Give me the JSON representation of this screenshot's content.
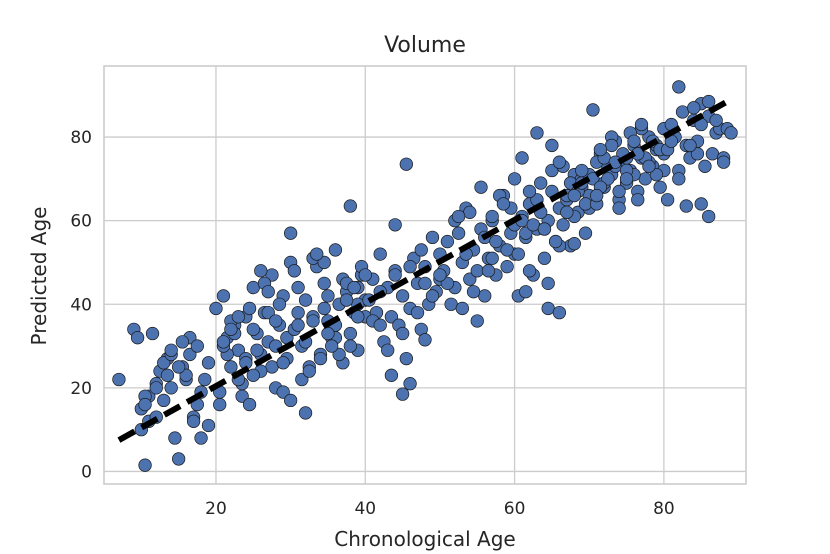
{
  "chart_data": {
    "type": "scatter",
    "title": "Volume",
    "xlabel": "Chronological Age",
    "ylabel": "Predicted Age",
    "xlim": [
      5,
      91
    ],
    "ylim": [
      -3,
      97
    ],
    "xticks": [
      20,
      40,
      60,
      80
    ],
    "yticks": [
      0,
      20,
      40,
      60,
      80
    ],
    "grid": true,
    "point_color": "#4c72b0",
    "fit_line": {
      "x": [
        7,
        89
      ],
      "y": [
        7.5,
        89
      ],
      "style": "dashed",
      "color": "#000000"
    },
    "x": [
      7,
      9,
      9.5,
      10,
      10.5,
      11,
      11,
      12,
      12.5,
      13,
      13.5,
      14,
      14.5,
      15,
      15.5,
      16,
      16.5,
      17,
      17.5,
      18,
      10,
      11.5,
      13,
      14,
      15.5,
      16,
      17,
      18,
      19,
      10.5,
      12,
      13.5,
      15,
      16.5,
      14,
      12,
      10.5,
      17.5,
      19,
      18.5,
      20,
      20.5,
      21,
      21.5,
      22,
      22.5,
      23,
      23.5,
      24,
      24.5,
      25,
      25.5,
      26,
      26.5,
      27,
      27.5,
      28,
      28.5,
      29,
      29.5,
      20.5,
      21.5,
      22.5,
      23.5,
      24.5,
      25.5,
      26.5,
      27.5,
      28.5,
      29.5,
      21,
      22,
      23,
      24,
      25,
      26,
      27,
      28,
      29,
      30,
      21,
      23,
      25,
      27,
      29,
      22,
      24,
      26,
      28,
      30,
      30.5,
      31,
      31.5,
      32,
      32.5,
      33,
      33.5,
      34,
      34.5,
      35,
      35.5,
      36,
      36.5,
      37,
      37.5,
      38,
      38.5,
      39,
      39.5,
      40,
      31,
      32,
      33,
      34,
      35,
      36,
      37,
      38,
      39,
      40,
      30,
      31.5,
      33,
      34.5,
      36,
      37.5,
      39,
      32,
      35,
      38,
      30.5,
      32.5,
      34.5,
      36.5,
      38.5,
      31,
      33.5,
      35.5,
      37.5,
      39.5,
      40.5,
      41,
      41.5,
      42,
      42.5,
      43,
      43.5,
      44,
      44.5,
      45,
      45.5,
      46,
      46.5,
      47,
      47.5,
      48,
      48.5,
      49,
      49.5,
      50,
      41,
      42,
      43,
      44,
      45,
      46,
      47,
      48,
      49,
      50,
      45.5,
      45,
      46,
      44,
      42,
      39,
      43.5,
      47.5,
      40,
      48,
      50.5,
      51,
      51.5,
      52,
      52.5,
      53,
      53.5,
      54,
      54.5,
      55,
      55.5,
      56,
      56.5,
      57,
      57.5,
      58,
      58.5,
      59,
      59.5,
      60,
      51,
      52,
      53,
      54,
      55,
      56,
      57,
      58,
      59,
      60,
      53.5,
      55.5,
      57.5,
      59.5,
      52.5,
      56.5,
      58.5,
      50,
      54.5,
      57,
      60.5,
      61,
      61.5,
      62,
      62.5,
      63,
      63.5,
      64,
      64.5,
      65,
      65.5,
      66,
      66.5,
      67,
      67.5,
      68,
      68.5,
      69,
      69.5,
      70,
      61,
      62,
      63,
      64,
      65,
      66,
      67,
      68,
      69,
      70,
      61.5,
      63.5,
      65.5,
      67.5,
      69.5,
      60,
      62.5,
      64.5,
      66.5,
      68.5,
      61,
      63,
      65,
      67,
      69,
      62,
      64,
      66,
      68,
      70,
      64.5,
      60.5,
      66,
      61.5,
      68,
      70.5,
      71,
      71.5,
      72,
      72.5,
      73,
      73.5,
      74,
      74.5,
      75,
      75.5,
      76,
      76.5,
      77,
      77.5,
      78,
      78.5,
      79,
      79.5,
      80,
      71,
      72,
      73,
      74,
      75,
      76,
      77,
      78,
      79,
      80,
      70.5,
      72.5,
      74.5,
      76.5,
      78.5,
      71.5,
      73.5,
      75.5,
      77.5,
      79.5,
      71,
      73,
      75,
      77,
      79,
      72,
      74,
      76,
      78,
      80,
      69,
      73.5,
      76.5,
      75,
      71.5,
      80.5,
      81,
      81.5,
      82,
      82.5,
      83,
      83.5,
      84,
      84.5,
      85,
      85.5,
      86,
      86.5,
      87,
      87.5,
      88,
      88.5,
      89,
      81,
      82,
      83,
      84,
      85,
      86,
      82,
      84.5,
      86,
      88,
      80.5,
      83.5,
      85,
      87
    ],
    "y": [
      22,
      34,
      32,
      15,
      1.5,
      12,
      18,
      21,
      24,
      17,
      27,
      20,
      8,
      3,
      25,
      22,
      32,
      13,
      16,
      8,
      10,
      33,
      26,
      28,
      31,
      23,
      12,
      19,
      11,
      18,
      13,
      23,
      25,
      28,
      29,
      20,
      16,
      30,
      26,
      22,
      39,
      16,
      42,
      32,
      25,
      35,
      29,
      18,
      37,
      16,
      44,
      33,
      28,
      38,
      31,
      47,
      20,
      35,
      42,
      27,
      19,
      28,
      33,
      21,
      39,
      29,
      45,
      25,
      40,
      32,
      30,
      36,
      22,
      27,
      34,
      24,
      38,
      30,
      26,
      50,
      31,
      37,
      23,
      43,
      19,
      34,
      26,
      48,
      36,
      17,
      34,
      44,
      30,
      41,
      25,
      37,
      49,
      28,
      45,
      36,
      32,
      53,
      40,
      26,
      43,
      33,
      38,
      29,
      47,
      41,
      38,
      31,
      51,
      27,
      42,
      35,
      46,
      30,
      44,
      37,
      57,
      22,
      36,
      50,
      32,
      45,
      40,
      14,
      33,
      63.5,
      48,
      24,
      39,
      28,
      44,
      35,
      52,
      30,
      41,
      49,
      41,
      46,
      38,
      52,
      31,
      44,
      37,
      48,
      35,
      42,
      27,
      39,
      51,
      45,
      34,
      49,
      40,
      56,
      43,
      46,
      36,
      43,
      29,
      47,
      33,
      49,
      38,
      45,
      42,
      52,
      73.5,
      18.5,
      21,
      59,
      35,
      37,
      23,
      53,
      47,
      31.5,
      48,
      55,
      40,
      44,
      57,
      50,
      63,
      46,
      53,
      36,
      58,
      42,
      51,
      60,
      47,
      54,
      66,
      49,
      57,
      52,
      45,
      60,
      39,
      62,
      48,
      56,
      51,
      66,
      53,
      59,
      52,
      68,
      55,
      63,
      61,
      48,
      64,
      47,
      43,
      61,
      52,
      61,
      56,
      64,
      47,
      58,
      69,
      51,
      60,
      67,
      55,
      63,
      59,
      65,
      54,
      71,
      62,
      68,
      57,
      66,
      60,
      48,
      65,
      58,
      72,
      54,
      66,
      61,
      70,
      63,
      57,
      62,
      55,
      69,
      64,
      70,
      59,
      45,
      73,
      67,
      75,
      81,
      78,
      62,
      69,
      67,
      58,
      74,
      66,
      71,
      39,
      42,
      38,
      43,
      54.5,
      70,
      64,
      76,
      68,
      73,
      71,
      79,
      65,
      74,
      69,
      72,
      78,
      67,
      75,
      70,
      80,
      73,
      77,
      68,
      76,
      74,
      69,
      80,
      63,
      75,
      71,
      82,
      74,
      78,
      72,
      86.5,
      70,
      76,
      65,
      79,
      68,
      73,
      81,
      75,
      77,
      66,
      78,
      72,
      83,
      71,
      75,
      67,
      79,
      73,
      82,
      72,
      74,
      76,
      70,
      77,
      77,
      83,
      80,
      72,
      86,
      78,
      75,
      84,
      79,
      88,
      73,
      85,
      76,
      81,
      82,
      75,
      82,
      81,
      79,
      92,
      63.5,
      87,
      64,
      61,
      70,
      76,
      88.5,
      74,
      65,
      78,
      83,
      84
    ]
  }
}
